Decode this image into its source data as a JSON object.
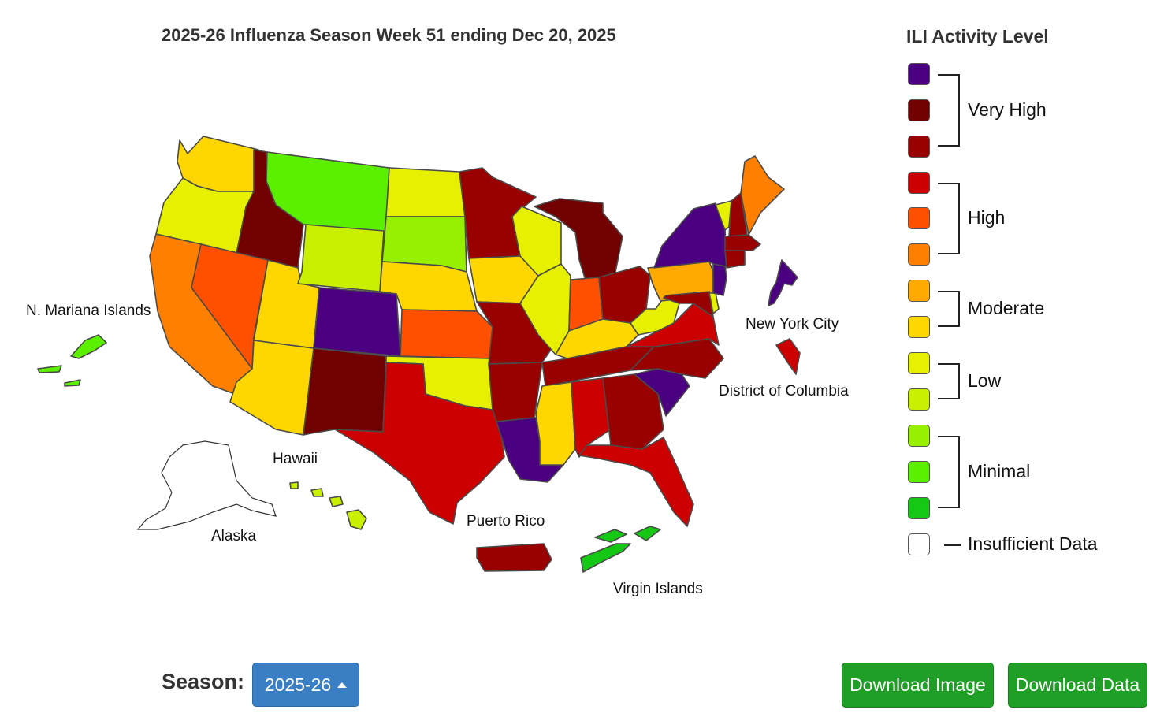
{
  "title": "2025-26 Influenza Season Week 51 ending Dec 20, 2025",
  "colors": {
    "very_high_3": "#4b0082",
    "very_high_2": "#730000",
    "very_high_1": "#990000",
    "high_3": "#cc0000",
    "high_2": "#ff5000",
    "high_1": "#ff8000",
    "moderate_2": "#ffaa00",
    "moderate_1": "#ffd700",
    "low_2": "#e6f000",
    "low_1": "#c8f000",
    "minimal_3": "#96f000",
    "minimal_2": "#5af000",
    "minimal_1": "#14c814",
    "insufficient": "#ffffff"
  },
  "legend": {
    "title": "ILI Activity Level",
    "groups": [
      {
        "label": "Very High",
        "levels": [
          "very_high_3",
          "very_high_2",
          "very_high_1"
        ]
      },
      {
        "label": "High",
        "levels": [
          "high_3",
          "high_2",
          "high_1"
        ]
      },
      {
        "label": "Moderate",
        "levels": [
          "moderate_2",
          "moderate_1"
        ]
      },
      {
        "label": "Low",
        "levels": [
          "low_2",
          "low_1"
        ]
      },
      {
        "label": "Minimal",
        "levels": [
          "minimal_3",
          "minimal_2",
          "minimal_1"
        ]
      },
      {
        "label": "Insufficient Data",
        "levels": [
          "insufficient"
        ]
      }
    ]
  },
  "map": {
    "labels": {
      "nmi": "N. Mariana Islands",
      "nyc": "New York City",
      "dc": "District of Columbia",
      "hawaii": "Hawaii",
      "alaska": "Alaska",
      "pr": "Puerto Rico",
      "vi": "Virgin Islands"
    },
    "levels": {
      "WA": "moderate_1",
      "OR": "low_2",
      "CA": "high_1",
      "ID": "very_high_2",
      "NV": "high_2",
      "MT": "minimal_2",
      "WY": "low_1",
      "UT": "moderate_1",
      "AZ": "moderate_1",
      "CO": "very_high_3",
      "NM": "very_high_2",
      "ND": "low_2",
      "SD": "minimal_3",
      "NE": "moderate_1",
      "KS": "high_2",
      "OK": "low_2",
      "TX": "high_3",
      "MN": "very_high_1",
      "IA": "moderate_1",
      "MO": "very_high_1",
      "AR": "very_high_1",
      "LA": "very_high_3",
      "WI": "low_2",
      "IL": "low_2",
      "MI": "very_high_2",
      "IN": "high_2",
      "OH": "very_high_1",
      "KY": "moderate_1",
      "TN": "very_high_1",
      "MS": "moderate_1",
      "AL": "high_3",
      "GA": "very_high_1",
      "FL": "high_3",
      "SC": "very_high_3",
      "NC": "very_high_1",
      "VA": "high_3",
      "WV": "low_2",
      "PA": "moderate_2",
      "NY": "very_high_3",
      "VT": "low_2",
      "NH": "very_high_1",
      "ME": "high_1",
      "MA": "very_high_1",
      "CT": "very_high_1",
      "NJ": "very_high_3",
      "DE": "low_2",
      "MD": "very_high_1",
      "NYC": "very_high_3",
      "DC": "high_3",
      "HI": "low_1",
      "AK": "insufficient",
      "PR": "very_high_1",
      "VI": "minimal_1",
      "NMI": "minimal_2"
    }
  },
  "controls": {
    "season_label": "Season:",
    "season_value": "2025-26",
    "download_image": "Download Image",
    "download_data": "Download Data"
  }
}
